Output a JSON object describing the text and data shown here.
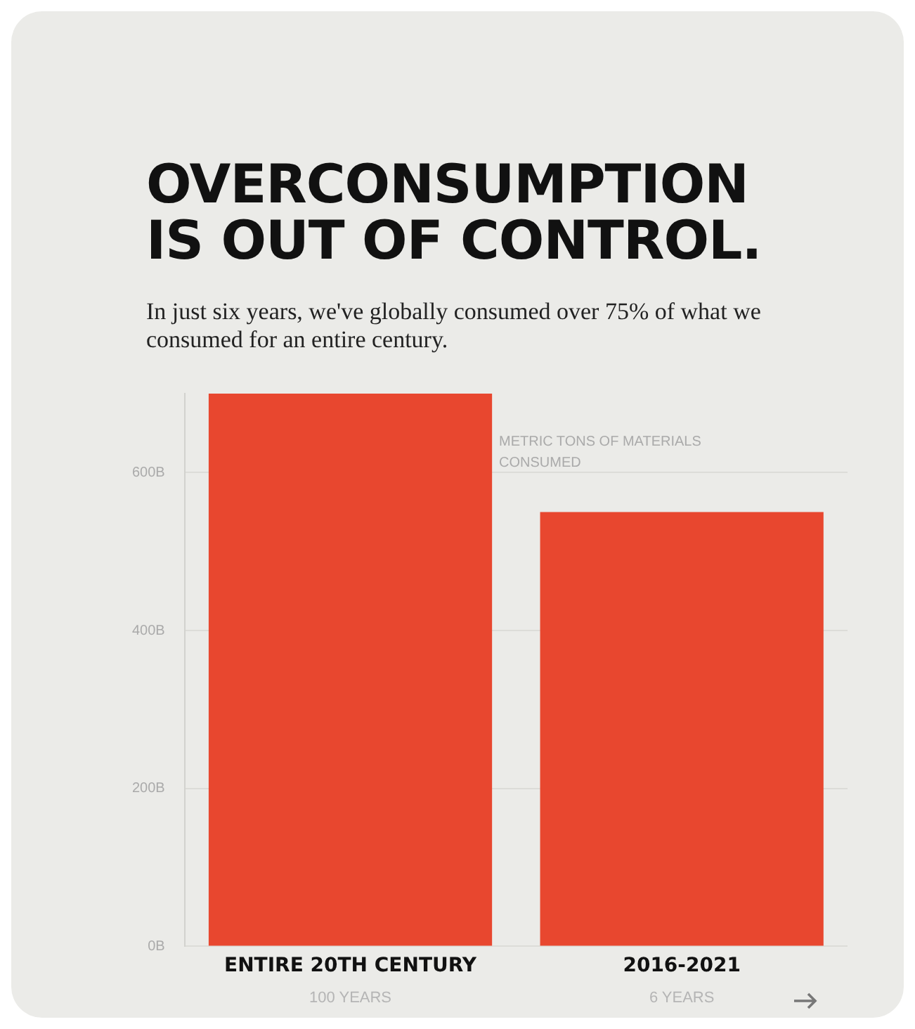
{
  "chart_data": {
    "type": "bar",
    "title": "OVERCONSUMPTION IS OUT OF CONTROL.",
    "subtitle": "In just six years, we've globally consumed over 75% of what we consumed for an entire century.",
    "ylabel": "METRIC TONS OF MATERIALS CONSUMED",
    "categories": [
      "ENTIRE 20TH CENTURY",
      "2016-2021"
    ],
    "values": [
      700,
      550
    ],
    "color": "#e8472f",
    "yticks": [
      {
        "value": 0,
        "label": "0B"
      },
      {
        "value": 200,
        "label": "200B"
      },
      {
        "value": 400,
        "label": "400B"
      },
      {
        "value": 600,
        "label": "600B"
      }
    ],
    "ylim": [
      0,
      700
    ],
    "grid": "y",
    "legend": false,
    "annotations": [
      "100 YEARS",
      "6 YEARS"
    ]
  }
}
